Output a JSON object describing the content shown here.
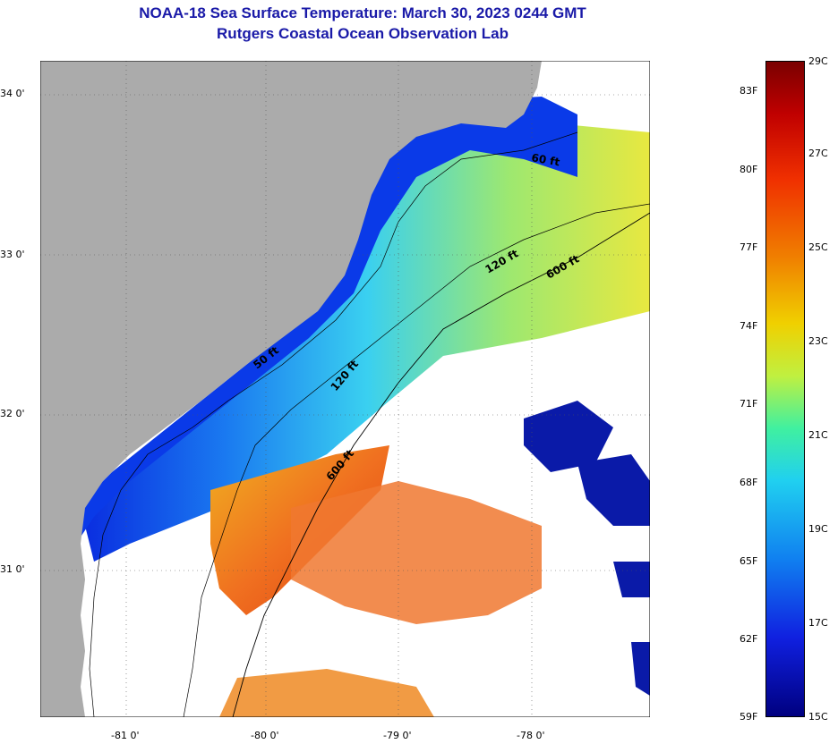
{
  "title": {
    "line1": "NOAA-18 Sea Surface Temperature:  March 30, 2023 0244 GMT",
    "line2": "Rutgers Coastal Ocean Observation Lab"
  },
  "map": {
    "lat_labels": [
      "34 0'",
      "33 0'",
      "32 0'",
      "31 0'"
    ],
    "lon_labels": [
      "-81 0'",
      "-80 0'",
      "-79 0'",
      "-78 0'"
    ],
    "contours": [
      "60 ft",
      "120 ft",
      "600 ft",
      "50 ft",
      "120 ft",
      "600 ft"
    ],
    "colors": {
      "land": "#ababab",
      "cloud": "#ffffff",
      "cold": "#0000a0",
      "warm": "#e84000"
    }
  },
  "colorbar": {
    "fahrenheit": [
      "83F",
      "80F",
      "77F",
      "74F",
      "71F",
      "68F",
      "65F",
      "62F",
      "59F"
    ],
    "celsius": [
      "29C",
      "27C",
      "25C",
      "23C",
      "21C",
      "19C",
      "17C",
      "15C"
    ]
  }
}
